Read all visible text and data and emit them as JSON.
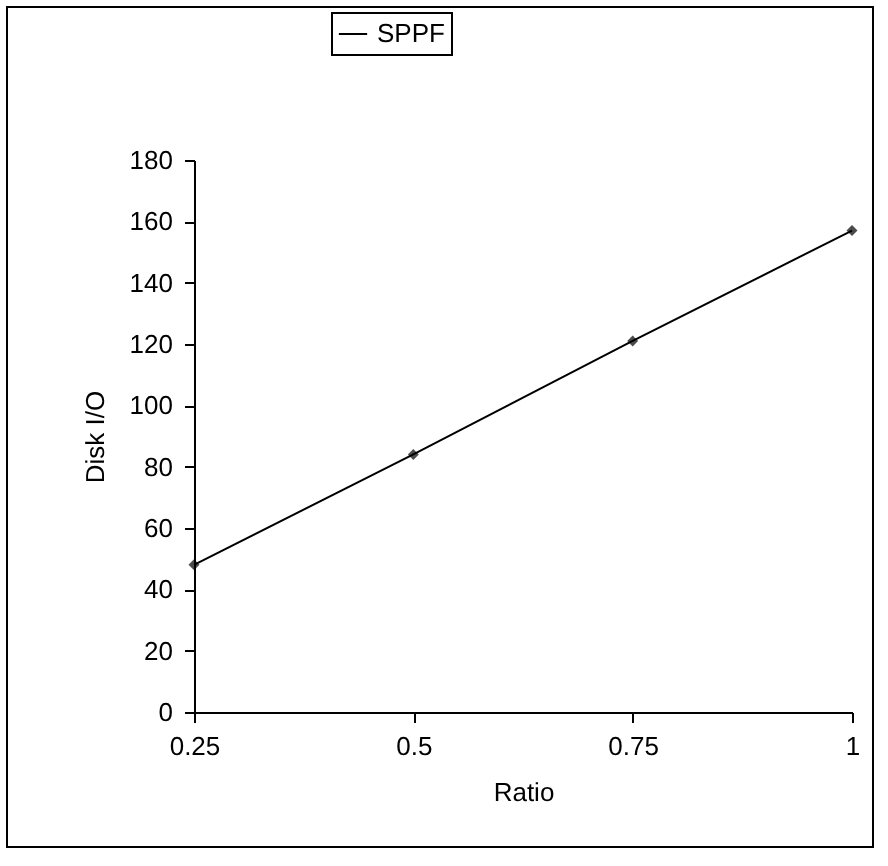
{
  "chart_data": {
    "type": "line",
    "xlabel": "Ratio",
    "ylabel": "Disk I/O",
    "x": [
      0.25,
      0.5,
      0.75,
      1
    ],
    "series": [
      {
        "name": "SPPF",
        "color": "#000000",
        "values": [
          48,
          84,
          121,
          157
        ]
      }
    ],
    "xlim": [
      0.25,
      1
    ],
    "xticks": [
      0.25,
      0.5,
      0.75,
      1
    ],
    "ylim": [
      0,
      180
    ],
    "yticks": [
      0,
      20,
      40,
      60,
      80,
      100,
      120,
      140,
      160,
      180
    ],
    "grid": false,
    "legend": "top",
    "marker": "diamond",
    "line_style": "solid"
  }
}
